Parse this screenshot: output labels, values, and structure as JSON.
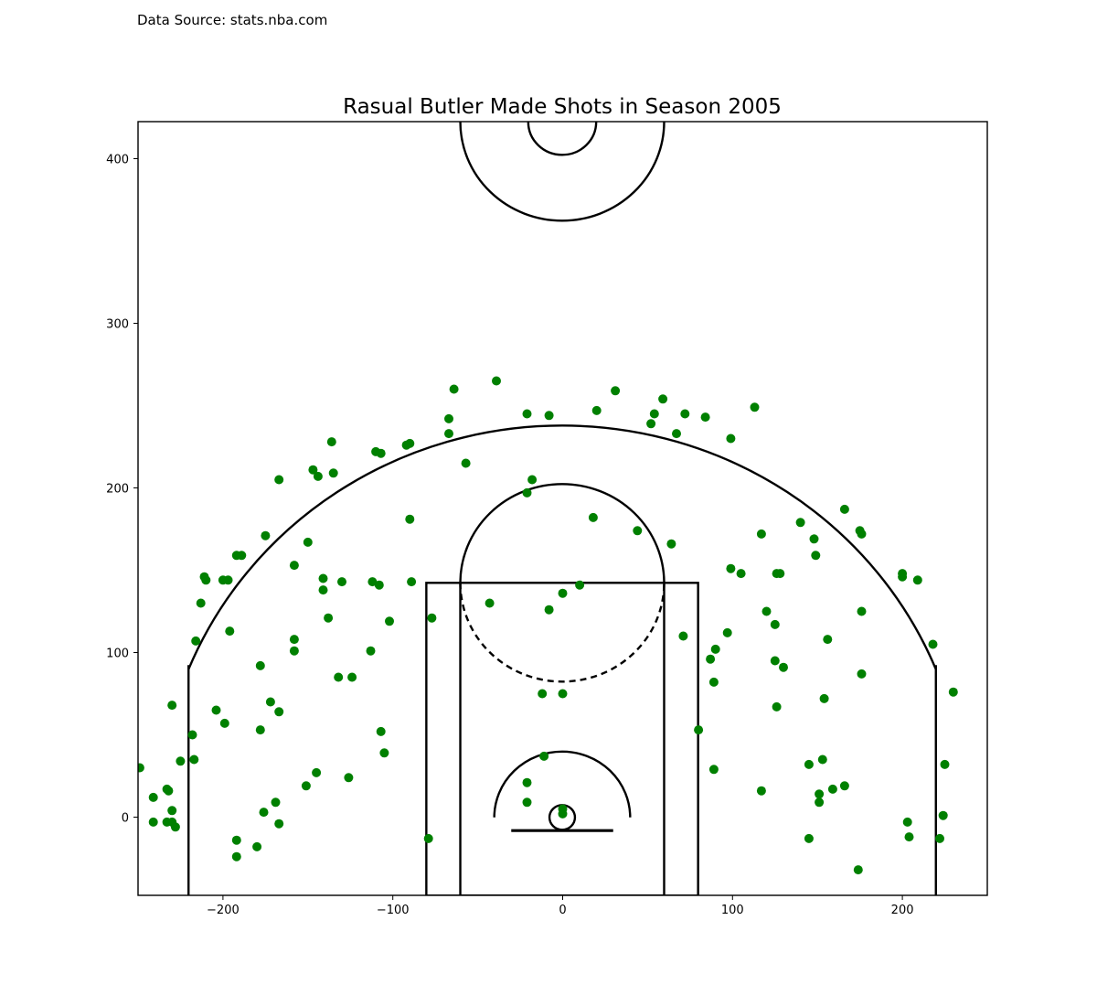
{
  "source_note": "Data Source: stats.nba.com",
  "chart_data": {
    "type": "scatter",
    "title": "Rasual Butler Made Shots in Season 2005",
    "xlabel": "",
    "ylabel": "",
    "xlim": [
      -250,
      250
    ],
    "ylim": [
      -47.5,
      422.5
    ],
    "xticks": [
      -200,
      -100,
      0,
      100,
      200
    ],
    "yticks": [
      0,
      100,
      200,
      300,
      400
    ],
    "xtick_labels": [
      "−200",
      "−100",
      "0",
      "100",
      "200"
    ],
    "ytick_labels": [
      "0",
      "100",
      "200",
      "300",
      "400"
    ],
    "grid": false,
    "marker_color": "#008000",
    "series": [
      {
        "points": [
          [
            -249,
            30
          ],
          [
            -241,
            12
          ],
          [
            -241,
            -3
          ],
          [
            -233,
            17
          ],
          [
            -232,
            16
          ],
          [
            -233,
            -3
          ],
          [
            -230,
            4
          ],
          [
            -230,
            -3
          ],
          [
            -228,
            -6
          ],
          [
            -230,
            68
          ],
          [
            -225,
            34
          ],
          [
            -218,
            50
          ],
          [
            -217,
            35
          ],
          [
            -216,
            107
          ],
          [
            -213,
            130
          ],
          [
            -211,
            146
          ],
          [
            -210,
            144
          ],
          [
            -200,
            144
          ],
          [
            -197,
            144
          ],
          [
            -196,
            113
          ],
          [
            -204,
            65
          ],
          [
            -199,
            57
          ],
          [
            -192,
            159
          ],
          [
            -189,
            159
          ],
          [
            -192,
            -14
          ],
          [
            -192,
            -24
          ],
          [
            -180,
            -18
          ],
          [
            -178,
            53
          ],
          [
            -178,
            92
          ],
          [
            -176,
            3
          ],
          [
            -175,
            171
          ],
          [
            -172,
            70
          ],
          [
            -169,
            9
          ],
          [
            -167,
            -4
          ],
          [
            -167,
            64
          ],
          [
            -167,
            205
          ],
          [
            -158,
            153
          ],
          [
            -158,
            108
          ],
          [
            -158,
            101
          ],
          [
            -151,
            19
          ],
          [
            -150,
            167
          ],
          [
            -147,
            211
          ],
          [
            -144,
            207
          ],
          [
            -145,
            27
          ],
          [
            -141,
            145
          ],
          [
            -141,
            138
          ],
          [
            -138,
            121
          ],
          [
            -136,
            228
          ],
          [
            -135,
            209
          ],
          [
            -132,
            85
          ],
          [
            -130,
            143
          ],
          [
            -126,
            24
          ],
          [
            -124,
            85
          ],
          [
            -113,
            101
          ],
          [
            -112,
            143
          ],
          [
            -110,
            222
          ],
          [
            -108,
            141
          ],
          [
            -107,
            221
          ],
          [
            -107,
            52
          ],
          [
            -105,
            39
          ],
          [
            -102,
            119
          ],
          [
            -92,
            226
          ],
          [
            -90,
            227
          ],
          [
            -90,
            181
          ],
          [
            -89,
            143
          ],
          [
            -77,
            121
          ],
          [
            -79,
            -13
          ],
          [
            -67,
            242
          ],
          [
            -67,
            233
          ],
          [
            -64,
            260
          ],
          [
            -57,
            215
          ],
          [
            -43,
            130
          ],
          [
            -39,
            265
          ],
          [
            -21,
            245
          ],
          [
            -21,
            197
          ],
          [
            -18,
            205
          ],
          [
            -21,
            21
          ],
          [
            -21,
            9
          ],
          [
            -11,
            37
          ],
          [
            -12,
            75
          ],
          [
            -8,
            244
          ],
          [
            -8,
            126
          ],
          [
            0,
            136
          ],
          [
            0,
            75
          ],
          [
            0,
            5
          ],
          [
            0,
            2
          ],
          [
            10,
            141
          ],
          [
            18,
            182
          ],
          [
            20,
            247
          ],
          [
            31,
            259
          ],
          [
            44,
            174
          ],
          [
            52,
            239
          ],
          [
            54,
            245
          ],
          [
            59,
            254
          ],
          [
            64,
            166
          ],
          [
            67,
            233
          ],
          [
            72,
            245
          ],
          [
            71,
            110
          ],
          [
            80,
            53
          ],
          [
            84,
            243
          ],
          [
            87,
            96
          ],
          [
            89,
            82
          ],
          [
            89,
            29
          ],
          [
            90,
            102
          ],
          [
            97,
            112
          ],
          [
            99,
            151
          ],
          [
            99,
            230
          ],
          [
            105,
            148
          ],
          [
            113,
            249
          ],
          [
            117,
            172
          ],
          [
            117,
            16
          ],
          [
            120,
            125
          ],
          [
            125,
            117
          ],
          [
            125,
            95
          ],
          [
            126,
            148
          ],
          [
            126,
            67
          ],
          [
            128,
            148
          ],
          [
            130,
            91
          ],
          [
            140,
            179
          ],
          [
            145,
            32
          ],
          [
            145,
            -13
          ],
          [
            148,
            169
          ],
          [
            149,
            159
          ],
          [
            151,
            14
          ],
          [
            151,
            9
          ],
          [
            153,
            35
          ],
          [
            154,
            72
          ],
          [
            156,
            108
          ],
          [
            159,
            17
          ],
          [
            166,
            19
          ],
          [
            166,
            187
          ],
          [
            174,
            -32
          ],
          [
            175,
            174
          ],
          [
            176,
            87
          ],
          [
            176,
            172
          ],
          [
            176,
            125
          ],
          [
            200,
            148
          ],
          [
            200,
            146
          ],
          [
            203,
            -3
          ],
          [
            204,
            -12
          ],
          [
            209,
            144
          ],
          [
            218,
            105
          ],
          [
            222,
            -13
          ],
          [
            224,
            1
          ],
          [
            225,
            32
          ],
          [
            230,
            76
          ]
        ]
      }
    ]
  }
}
